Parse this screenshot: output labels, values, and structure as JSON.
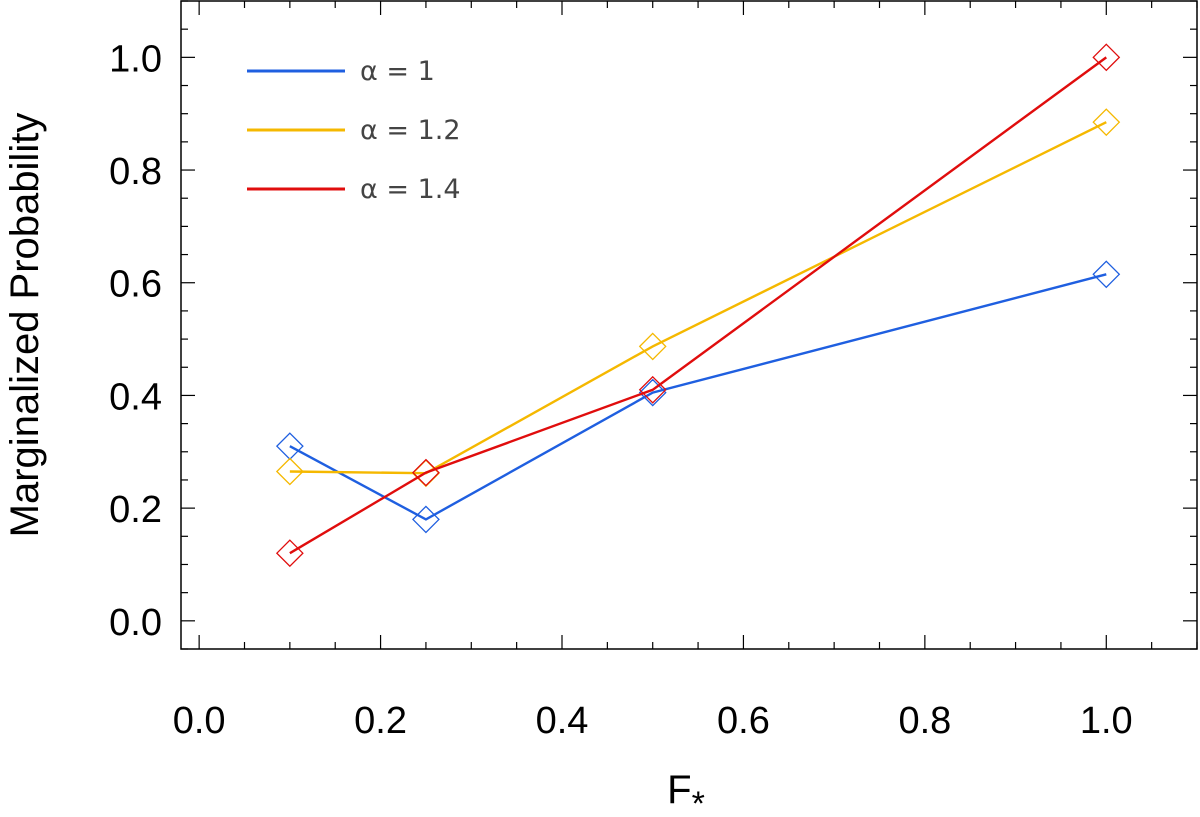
{
  "chart_data": {
    "type": "line",
    "title": "",
    "xlabel": "F",
    "xlabel_subscript": "*",
    "ylabel": "Marginalized Probability",
    "xlim": [
      -0.02,
      1.1
    ],
    "ylim": [
      -0.05,
      1.1
    ],
    "x_ticks": [
      "0.0",
      "0.2",
      "0.4",
      "0.6",
      "0.8",
      "1.0"
    ],
    "y_ticks": [
      "0.0",
      "0.2",
      "0.4",
      "0.6",
      "0.8",
      "1.0"
    ],
    "grid": false,
    "marker": "diamond-open",
    "legend_position": "top-left",
    "x": [
      0.1,
      0.25,
      0.5,
      1.0
    ],
    "series": [
      {
        "name": "α = 1",
        "color": "#1f5fe0",
        "values": [
          0.31,
          0.18,
          0.405,
          0.615
        ]
      },
      {
        "name": "α = 1.2",
        "color": "#f5b800",
        "values": [
          0.265,
          0.262,
          0.487,
          0.885
        ]
      },
      {
        "name": "α = 1.4",
        "color": "#e00d0d",
        "values": [
          0.12,
          0.263,
          0.41,
          1.0
        ]
      }
    ]
  }
}
